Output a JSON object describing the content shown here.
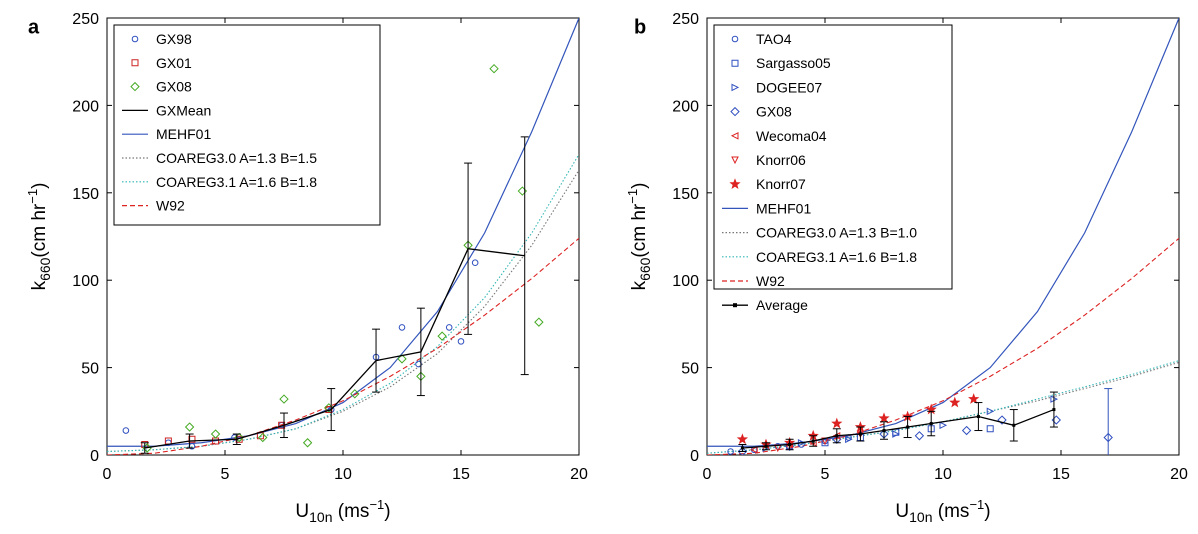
{
  "chart_data": [
    {
      "panel_label": "a",
      "type": "scatter",
      "xlabel_main": "U",
      "xlabel_sub": "10n",
      "xlabel_unit": " (ms",
      "xlabel_sup": "−1",
      "xlabel_close": ")",
      "ylabel_main": "k",
      "ylabel_sub": "660",
      "ylabel_unit": "(cm hr",
      "ylabel_sup": "−1",
      "ylabel_close": ")",
      "xlim": [
        0,
        20
      ],
      "ylim": [
        0,
        250
      ],
      "xticks": [
        0,
        5,
        10,
        15,
        20
      ],
      "yticks": [
        0,
        50,
        100,
        150,
        200,
        250
      ],
      "legend_position": "top-left",
      "series": [
        {
          "name": "GX98",
          "kind": "marker",
          "marker": "circle",
          "color": "#2f4fbf",
          "x": [
            0.8,
            2.6,
            3.6,
            5.4,
            7.4,
            9.5,
            11.4,
            12.5,
            13.2,
            14.5,
            15.0,
            15.6
          ],
          "y": [
            14,
            7,
            5,
            10,
            17,
            26,
            56,
            73,
            52,
            73,
            65,
            110
          ]
        },
        {
          "name": "GX01",
          "kind": "marker",
          "marker": "square",
          "color": "#cc2222",
          "x": [
            1.6,
            2.6,
            3.6,
            4.6,
            5.6,
            6.5,
            7.4,
            9.4
          ],
          "y": [
            6,
            8,
            9,
            8,
            9,
            11,
            17,
            26
          ]
        },
        {
          "name": "GX08",
          "kind": "marker",
          "marker": "diamond",
          "color": "#44aa22",
          "x": [
            1.7,
            3.5,
            4.6,
            5.6,
            6.6,
            7.5,
            8.5,
            9.4,
            10.5,
            12.5,
            13.3,
            14.2,
            15.3,
            16.4,
            17.6,
            18.3
          ],
          "y": [
            4,
            16,
            12,
            10,
            10,
            32,
            7,
            27,
            35,
            55,
            45,
            68,
            120,
            221,
            151,
            76
          ]
        },
        {
          "name": "GXMean",
          "kind": "errorline",
          "color": "#000000",
          "x": [
            1.6,
            3.5,
            5.5,
            7.5,
            9.5,
            11.4,
            13.3,
            15.3,
            17.7
          ],
          "y": [
            4,
            8,
            9,
            17,
            26,
            54,
            59,
            118,
            114
          ],
          "yerr": [
            3,
            4,
            3,
            7,
            12,
            18,
            25,
            49,
            68
          ]
        },
        {
          "name": "MEHF01",
          "kind": "line",
          "style": "solid",
          "color": "#3355bb",
          "x": [
            0,
            2,
            4,
            6,
            8,
            10,
            12,
            14,
            16,
            18,
            20
          ],
          "y": [
            5,
            5,
            7,
            11,
            18,
            30,
            50,
            82,
            127,
            185,
            250
          ]
        },
        {
          "name": "COAREG3.0 A=1.3 B=1.5",
          "kind": "line",
          "style": "dotted",
          "color": "#777777",
          "x": [
            0,
            2,
            4,
            6,
            8,
            10,
            12,
            14,
            16,
            18,
            20
          ],
          "y": [
            2,
            3,
            5,
            9,
            15,
            25,
            39,
            58,
            85,
            120,
            163
          ]
        },
        {
          "name": "COAREG3.1 A=1.6 B=1.8",
          "kind": "line",
          "style": "dotted",
          "color": "#33b5b5",
          "x": [
            0,
            2,
            4,
            6,
            8,
            10,
            12,
            14,
            16,
            18,
            20
          ],
          "y": [
            2,
            3,
            5,
            9,
            15,
            26,
            41,
            62,
            90,
            127,
            172
          ]
        },
        {
          "name": "W92",
          "kind": "line",
          "style": "dashed",
          "color": "#dd2222",
          "x": [
            0,
            2,
            4,
            6,
            8,
            10,
            12,
            14,
            16,
            18,
            20
          ],
          "y": [
            0,
            1,
            5,
            11,
            20,
            31,
            45,
            61,
            80,
            101,
            124
          ]
        }
      ]
    },
    {
      "panel_label": "b",
      "type": "scatter",
      "xlabel_main": "U",
      "xlabel_sub": "10n",
      "xlabel_unit": " (ms",
      "xlabel_sup": "−1",
      "xlabel_close": ")",
      "ylabel_main": "k",
      "ylabel_sub": "660",
      "ylabel_unit": "(cm hr",
      "ylabel_sup": "−1",
      "ylabel_close": ")",
      "xlim": [
        0,
        20
      ],
      "ylim": [
        0,
        250
      ],
      "xticks": [
        0,
        5,
        10,
        15,
        20
      ],
      "yticks": [
        0,
        50,
        100,
        150,
        200,
        250
      ],
      "legend_position": "top-left",
      "series": [
        {
          "name": "TAO4",
          "kind": "marker",
          "marker": "circle",
          "color": "#2f4fbf",
          "x": [
            1.0,
            2.0,
            3.0,
            4.0,
            5.0,
            6.0
          ],
          "y": [
            2,
            3,
            5,
            6,
            8,
            10
          ]
        },
        {
          "name": "Sargasso05",
          "kind": "marker",
          "marker": "square",
          "color": "#2f4fbf",
          "x": [
            3.5,
            5.0,
            6.5,
            8.0,
            9.5,
            12.0
          ],
          "y": [
            5,
            7,
            10,
            13,
            15,
            15
          ]
        },
        {
          "name": "DOGEE07",
          "kind": "marker",
          "marker": "triangle-right",
          "color": "#2f4fbf",
          "x": [
            2.5,
            4.0,
            6.0,
            8.0,
            10.0,
            12.0,
            14.7
          ],
          "y": [
            4,
            7,
            9,
            12,
            17,
            25,
            32
          ]
        },
        {
          "name": "GX08",
          "kind": "marker",
          "marker": "diamond",
          "color": "#2f4fbf",
          "x": [
            1.5,
            3.5,
            5.5,
            7.5,
            9.0,
            11.0,
            12.5,
            14.8,
            17.0
          ],
          "y": [
            2,
            5,
            9,
            12,
            11,
            14,
            20,
            20,
            10
          ]
        },
        {
          "name": "Wecoma04",
          "kind": "marker",
          "marker": "triangle-left",
          "color": "#dd2222",
          "x": [
            2.0,
            3.5,
            4.5,
            5.5
          ],
          "y": [
            3,
            6,
            7,
            11
          ]
        },
        {
          "name": "Knorr06",
          "kind": "marker",
          "marker": "triangle-down",
          "color": "#dd2222",
          "x": [
            3.0,
            5.0,
            6.5
          ],
          "y": [
            4,
            8,
            12
          ]
        },
        {
          "name": "Knorr07",
          "kind": "marker",
          "marker": "star",
          "color": "#dd2222",
          "x": [
            1.5,
            2.5,
            3.5,
            4.5,
            5.5,
            6.5,
            7.5,
            8.5,
            9.5,
            10.5,
            11.3
          ],
          "y": [
            9,
            6,
            7,
            11,
            18,
            16,
            21,
            22,
            26,
            30,
            32
          ]
        },
        {
          "name": "MEHF01",
          "kind": "line",
          "style": "solid",
          "color": "#3355bb",
          "x": [
            0,
            2,
            4,
            6,
            8,
            10,
            12,
            14,
            16,
            18,
            20
          ],
          "y": [
            5,
            5,
            7,
            11,
            18,
            30,
            50,
            82,
            127,
            185,
            250
          ]
        },
        {
          "name": "COAREG3.0 A=1.3 B=1.0",
          "kind": "line",
          "style": "dotted",
          "color": "#777777",
          "x": [
            0,
            2,
            4,
            6,
            8,
            10,
            12,
            14,
            16,
            18,
            20
          ],
          "y": [
            1,
            3,
            6,
            10,
            14,
            19,
            25,
            31,
            38,
            45,
            53
          ]
        },
        {
          "name": "COAREG3.1 A=1.6 B=1.8",
          "kind": "line",
          "style": "dotted",
          "color": "#33b5b5",
          "x": [
            0,
            2,
            4,
            6,
            8,
            10,
            12,
            14,
            16,
            18,
            20
          ],
          "y": [
            1,
            3,
            6,
            10,
            14,
            19,
            25,
            32,
            39,
            46,
            54
          ]
        },
        {
          "name": "W92",
          "kind": "line",
          "style": "dashed",
          "color": "#dd2222",
          "x": [
            0,
            2,
            4,
            6,
            8,
            10,
            12,
            14,
            16,
            18,
            20
          ],
          "y": [
            0,
            1,
            5,
            11,
            20,
            31,
            45,
            61,
            80,
            101,
            124
          ]
        },
        {
          "name": "Average",
          "kind": "errorline",
          "color": "#000000",
          "x": [
            1.5,
            2.5,
            3.5,
            4.5,
            5.5,
            6.5,
            7.5,
            8.5,
            9.5,
            11.5,
            13.0,
            14.7,
            17.0
          ],
          "y": [
            4,
            5,
            6,
            8,
            11,
            12,
            14,
            16,
            18,
            22,
            17,
            26,
            null
          ],
          "yerr": [
            2,
            2,
            3,
            3,
            4,
            4,
            5,
            6,
            7,
            8,
            9,
            10,
            null
          ]
        }
      ],
      "extra_errorbar": {
        "x": 17.0,
        "y": 10,
        "ylo": 0,
        "yhi": 38,
        "color": "#3355bb"
      }
    }
  ]
}
